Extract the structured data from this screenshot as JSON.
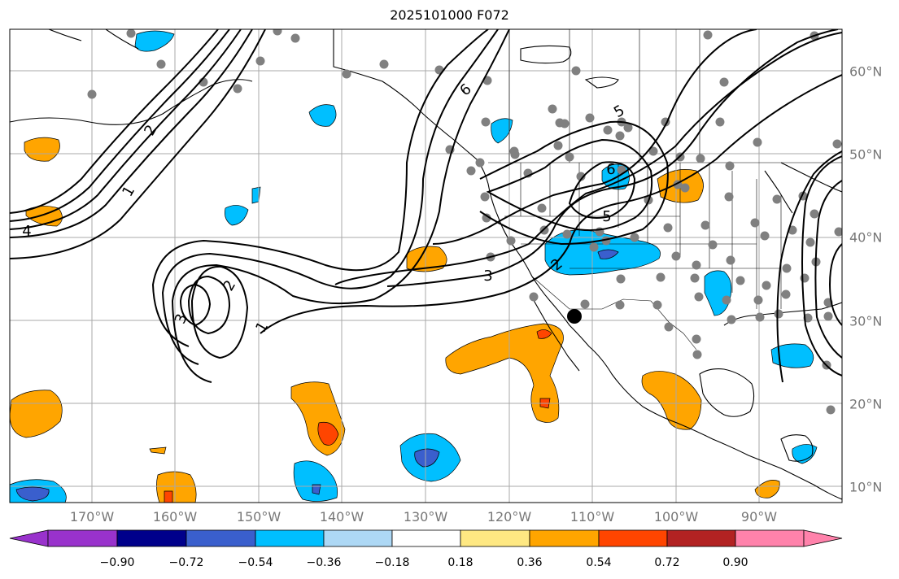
{
  "title": "2025101000 F072",
  "longitude_labels": [
    "170°W",
    "160°W",
    "150°W",
    "140°W",
    "130°W",
    "120°W",
    "110°W",
    "100°W",
    "90°W"
  ],
  "latitude_labels": [
    "60°N",
    "50°N",
    "40°N",
    "30°N",
    "20°N",
    "10°N"
  ],
  "colorbar": {
    "tick_labels": [
      "−0.90",
      "−0.72",
      "−0.54",
      "−0.36",
      "−0.18",
      "0.18",
      "0.36",
      "0.54",
      "0.72",
      "0.90"
    ],
    "colors": [
      "#9932cc",
      "#00008b",
      "#3a5fcd",
      "#00bfff",
      "#add8f5",
      "#ffffff",
      "#fee882",
      "#ffa500",
      "#ff4500",
      "#b22222",
      "#ff82ab"
    ]
  },
  "contour_labels": [
    "1",
    "2",
    "3",
    "4",
    "5",
    "6",
    "3",
    "2",
    "1",
    "5",
    "6"
  ],
  "colors": {
    "land_outline": "#000000",
    "grid": "#a8a8a8",
    "station_dot": "#808080",
    "marker": "#000000"
  }
}
